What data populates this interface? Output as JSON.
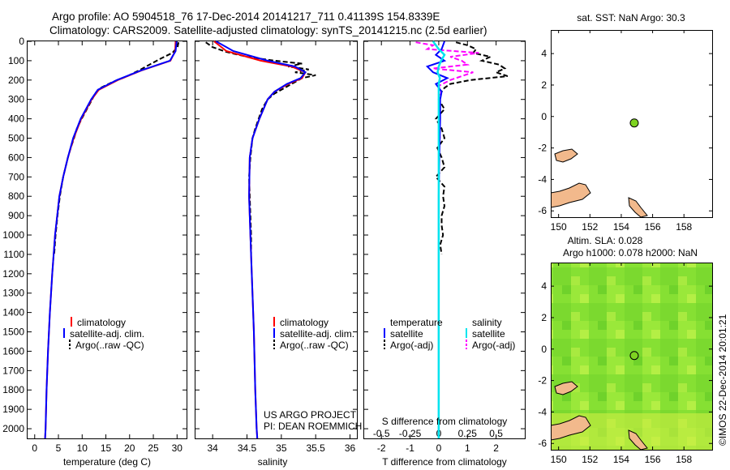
{
  "header": {
    "title_line1": "Argo profile: AO 5904518_76 17-Dec-2014 20141217_711 0.41139S 154.8339E",
    "title_line2": "Climatology: CARS2009. Satellite-adjusted climatology: synTS_20141215.nc (2.5d earlier)"
  },
  "colors": {
    "climatology": "#ff0000",
    "satellite": "#0000ff",
    "argo": "#000000",
    "salinity_satellite": "#00e5ee",
    "salinity_argo": "#ff00ff",
    "land": "#f2b98c",
    "float_marker": "#7ed321"
  },
  "chart_data": [
    {
      "type": "line",
      "panel": "temperature",
      "xlabel": "temperature (deg C)",
      "ylabel": "",
      "xlim": [
        -1.5,
        32
      ],
      "ylim": [
        2050,
        0
      ],
      "xticks": [
        0,
        5,
        10,
        15,
        20,
        25,
        30
      ],
      "xtick_labels": [
        "0",
        "5",
        "10",
        "15",
        "20",
        "25",
        "30"
      ],
      "yticks": [
        0,
        100,
        200,
        300,
        400,
        500,
        600,
        700,
        800,
        900,
        1000,
        1100,
        1200,
        1300,
        1400,
        1500,
        1600,
        1700,
        1800,
        1900,
        2000
      ],
      "ytick_labels": [
        "0",
        "100",
        "200",
        "300",
        "400",
        "500",
        "600",
        "700",
        "800",
        "900",
        "1000",
        "1100",
        "1200",
        "1300",
        "1400",
        "1500",
        "1600",
        "1700",
        "1800",
        "1900",
        "2000"
      ],
      "legend": [
        "climatology",
        "satellite-adj. clim.",
        "Argo(..raw -QC)"
      ],
      "series": [
        {
          "name": "climatology",
          "style": "solid",
          "depth": [
            0,
            50,
            100,
            150,
            200,
            250,
            300,
            400,
            500,
            600,
            700,
            800,
            1000,
            1200,
            1400,
            1600,
            1800,
            2000,
            2050
          ],
          "values": [
            29.7,
            29.6,
            28.6,
            22.5,
            17.5,
            13.5,
            12.0,
            9.8,
            8.2,
            7.0,
            6.0,
            5.2,
            4.3,
            3.7,
            3.2,
            2.8,
            2.5,
            2.3,
            2.2
          ]
        },
        {
          "name": "satellite-adj. clim.",
          "style": "solid",
          "depth": [
            0,
            50,
            100,
            150,
            200,
            250,
            300,
            400,
            500,
            600,
            700,
            800,
            1000,
            1200,
            1400,
            1600,
            1800,
            2000,
            2050
          ],
          "values": [
            29.9,
            29.7,
            28.5,
            22.4,
            17.3,
            13.3,
            11.9,
            9.7,
            8.1,
            7.0,
            6.0,
            5.2,
            4.3,
            3.7,
            3.2,
            2.8,
            2.5,
            2.3,
            2.2
          ]
        },
        {
          "name": "Argo(..raw -QC)",
          "style": "dashed",
          "depth": [
            5,
            30,
            60,
            90,
            120,
            150,
            180,
            210,
            240,
            270,
            300,
            350,
            400,
            450,
            500,
            550,
            600,
            700,
            800,
            900,
            1000,
            1100
          ],
          "values": [
            30.3,
            30.1,
            29.0,
            26.5,
            24.2,
            22.0,
            19.5,
            16.4,
            13.9,
            12.7,
            12.1,
            11.0,
            9.9,
            8.9,
            8.3,
            7.6,
            7.0,
            6.0,
            5.3,
            4.8,
            4.4,
            4.1
          ]
        }
      ]
    },
    {
      "type": "line",
      "panel": "salinity",
      "xlabel": "salinity",
      "xlim": [
        33.75,
        36.1
      ],
      "ylim": [
        2050,
        0
      ],
      "xticks": [
        34,
        34.5,
        35,
        35.5,
        36
      ],
      "xtick_labels": [
        "34",
        "34.5",
        "35",
        "35.5",
        "36"
      ],
      "legend": [
        "climatology",
        "satellite-adj. clim.",
        "Argo(..raw -QC)"
      ],
      "annotation_line1": "US ARGO PROJECT",
      "annotation_line2": "PI: DEAN ROEMMICH",
      "series": [
        {
          "name": "climatology",
          "style": "solid",
          "depth": [
            0,
            50,
            100,
            130,
            160,
            190,
            220,
            260,
            300,
            400,
            500,
            600,
            800,
            1000,
            1200,
            1500,
            1800,
            2000,
            2050
          ],
          "values": [
            34.02,
            34.2,
            34.7,
            35.15,
            35.35,
            35.3,
            35.1,
            34.9,
            34.8,
            34.68,
            34.58,
            34.54,
            34.53,
            34.55,
            34.57,
            34.6,
            34.62,
            34.64,
            34.65
          ]
        },
        {
          "name": "satellite-adj. clim.",
          "style": "solid",
          "depth": [
            0,
            50,
            100,
            130,
            160,
            190,
            220,
            260,
            300,
            400,
            500,
            600,
            800,
            1000,
            1200,
            1500,
            1800,
            2000,
            2050
          ],
          "values": [
            34.05,
            34.3,
            34.8,
            35.2,
            35.35,
            35.28,
            35.08,
            34.9,
            34.8,
            34.68,
            34.58,
            34.54,
            34.53,
            34.55,
            34.57,
            34.6,
            34.62,
            34.64,
            34.65
          ]
        },
        {
          "name": "Argo(..raw -QC)",
          "style": "dashed",
          "depth": [
            5,
            30,
            55,
            80,
            100,
            115,
            130,
            145,
            160,
            175,
            190,
            210,
            240,
            270,
            300,
            350,
            400,
            450,
            500,
            600,
            700,
            800,
            900,
            1000,
            1100
          ],
          "values": [
            33.9,
            34.0,
            34.2,
            34.5,
            34.9,
            35.3,
            35.1,
            35.4,
            35.2,
            35.5,
            35.3,
            35.2,
            35.05,
            34.9,
            34.8,
            34.72,
            34.67,
            34.62,
            34.58,
            34.55,
            34.53,
            34.54,
            34.55,
            34.56,
            34.56
          ]
        }
      ]
    },
    {
      "type": "line",
      "panel": "difference",
      "xlabel": "T difference from climatology",
      "xlabel_top": "S difference from climatology",
      "xlim": [
        -2.6,
        3.0
      ],
      "ylim": [
        2050,
        0
      ],
      "xticks": [
        -2,
        -1,
        0,
        1,
        2
      ],
      "xtick_labels": [
        "-2",
        "-1",
        "0",
        "1",
        "2"
      ],
      "top_ticks": [
        -0.5,
        -0.25,
        0,
        0.25,
        0.5
      ],
      "top_tick_labels": [
        "-0.5",
        "-0.25",
        "0",
        "0.25",
        "0.5"
      ],
      "legend_temperature_title": "temperature",
      "legend_salinity_title": "salinity",
      "legend": [
        "satellite",
        "Argo(-adj)",
        "satellite",
        "Argo(-adj)"
      ],
      "series": [
        {
          "name": "satellite",
          "group": "temperature",
          "style": "solid",
          "depth": [
            0,
            40,
            70,
            100,
            130,
            160,
            190,
            220,
            260,
            300,
            400,
            600,
            800,
            1000,
            1500,
            2050
          ],
          "values": [
            0.2,
            0.1,
            -0.1,
            0.2,
            -0.4,
            -0.2,
            0.3,
            -0.1,
            0.1,
            0.05,
            0.05,
            0.02,
            0.0,
            0.0,
            0.0,
            0.0
          ]
        },
        {
          "name": "Argo(-adj)",
          "group": "temperature",
          "style": "dashed",
          "depth": [
            5,
            20,
            40,
            60,
            80,
            100,
            120,
            140,
            160,
            180,
            200,
            220,
            240,
            260,
            300,
            350,
            400,
            450,
            500,
            550,
            600,
            650,
            700,
            750,
            800,
            850,
            900,
            950,
            1000,
            1050,
            1100
          ],
          "values": [
            0.6,
            1.0,
            1.3,
            1.2,
            1.8,
            1.5,
            2.1,
            2.3,
            2.0,
            2.4,
            1.1,
            0.4,
            0.2,
            0.1,
            0.0,
            0.2,
            -0.1,
            0.1,
            0.2,
            -0.05,
            0.1,
            0.2,
            -0.1,
            0.2,
            0.15,
            0.2,
            0.1,
            0.1,
            0.15,
            0.05,
            0.1
          ]
        },
        {
          "name": "satellite",
          "group": "salinity",
          "style": "solid",
          "depth": [
            0,
            40,
            70,
            100,
            130,
            160,
            190,
            220,
            260,
            300,
            400,
            600,
            800,
            1000,
            1500,
            2050
          ],
          "values": [
            -0.05,
            0.0,
            0.05,
            0.02,
            0.0,
            -0.01,
            0.01,
            0.0,
            0.0,
            0.0,
            0.0,
            0.0,
            0.0,
            0.0,
            0.0,
            0.0
          ]
        },
        {
          "name": "Argo(-adj)",
          "group": "salinity",
          "style": "dashed",
          "depth": [
            5,
            20,
            40,
            60,
            80,
            100,
            120,
            140,
            160,
            180,
            200,
            230,
            260,
            300,
            400,
            500,
            600
          ],
          "values": [
            -0.2,
            -0.05,
            -0.1,
            0.35,
            0.1,
            0.2,
            0.25,
            -0.05,
            0.3,
            0.2,
            0.1,
            0.0,
            0.02,
            0.01,
            0.0,
            0.01,
            0.0
          ]
        }
      ]
    },
    {
      "type": "scatter",
      "panel": "sst_map",
      "title": "sat. SST: NaN Argo: 30.3",
      "xlim": [
        149.5,
        159.8
      ],
      "ylim": [
        -6.4,
        5.5
      ],
      "xticks": [
        150,
        152,
        154,
        156,
        158
      ],
      "xtick_labels": [
        "150",
        "152",
        "154",
        "156",
        "158"
      ],
      "yticks": [
        -6,
        -4,
        -2,
        0,
        2,
        4
      ],
      "ytick_labels": [
        "-6",
        "-4",
        "-2",
        "0",
        "2",
        "4"
      ],
      "marker": {
        "lon": 154.83,
        "lat": -0.41
      }
    },
    {
      "type": "heatmap",
      "panel": "sla_map",
      "title_line1": "Altim. SLA: 0.028",
      "title_line2": "Argo h1000: 0.078 h2000: NaN",
      "xlim": [
        149.5,
        159.8
      ],
      "ylim": [
        -6.4,
        5.5
      ],
      "xticks": [
        150,
        152,
        154,
        156,
        158
      ],
      "xtick_labels": [
        "150",
        "152",
        "154",
        "156",
        "158"
      ],
      "yticks": [
        -6,
        -4,
        -2,
        0,
        2,
        4
      ],
      "ytick_labels": [
        "-6",
        "-4",
        "-2",
        "0",
        "2",
        "4"
      ],
      "marker": {
        "lon": 154.83,
        "lat": -0.41
      }
    }
  ],
  "credit": "©IMOS 22-Dec-2014 20:01:21"
}
